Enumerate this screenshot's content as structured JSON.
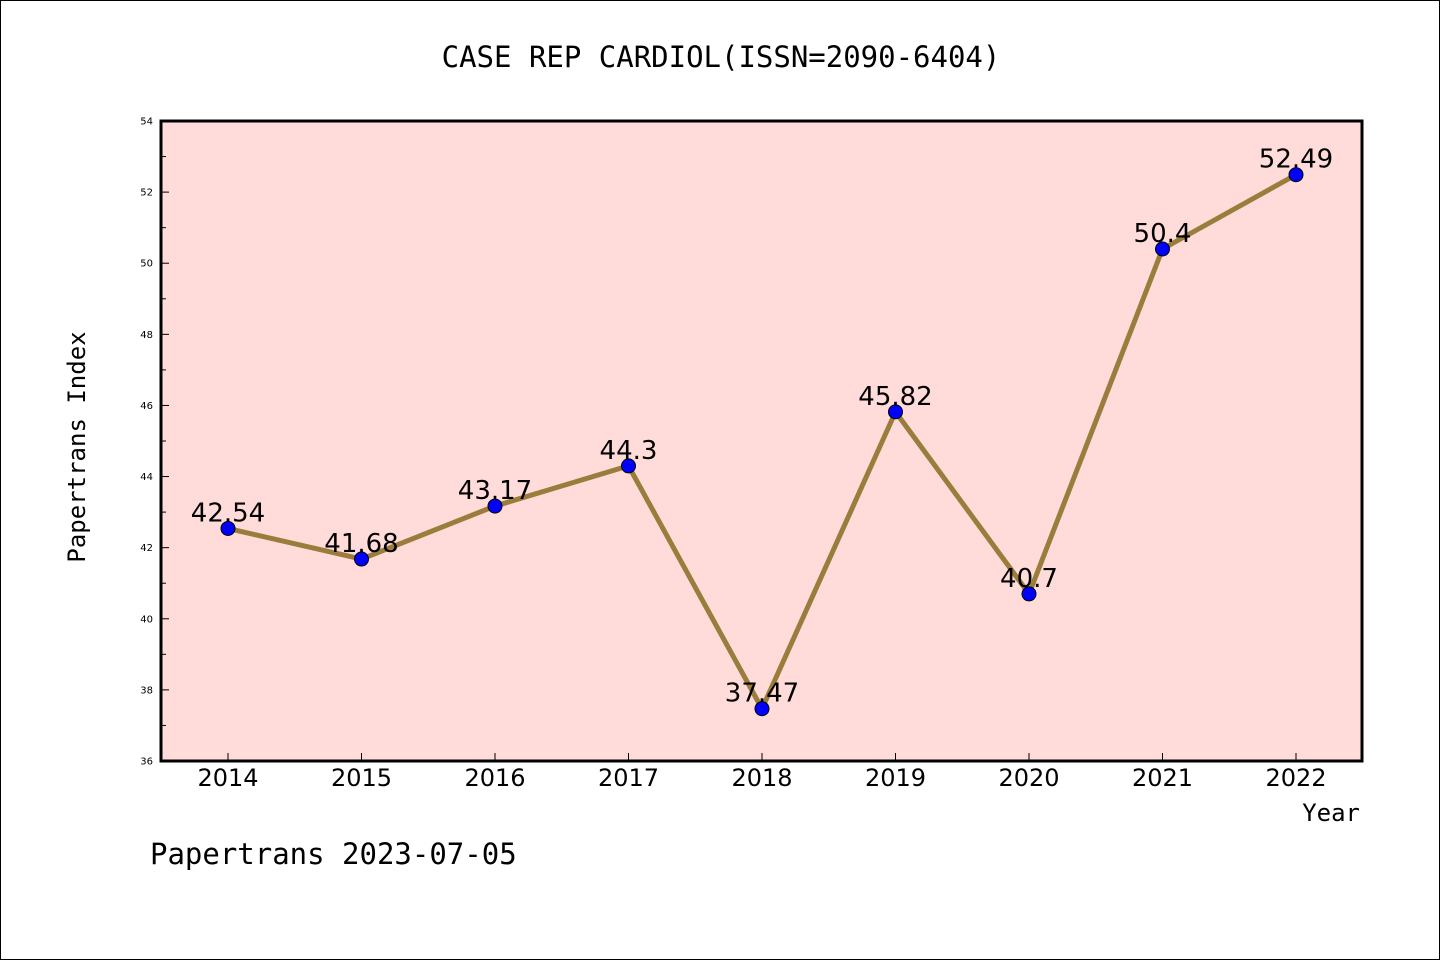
{
  "chart_data": {
    "type": "line",
    "title": "CASE REP CARDIOL(ISSN=2090-6404)",
    "xlabel": "Year",
    "ylabel": "Papertrans Index",
    "categories": [
      "2014",
      "2015",
      "2016",
      "2017",
      "2018",
      "2019",
      "2020",
      "2021",
      "2022"
    ],
    "values": [
      42.54,
      41.68,
      43.17,
      44.3,
      37.47,
      45.82,
      40.7,
      50.4,
      52.49
    ],
    "data_labels": [
      "42.54",
      "41.68",
      "43.17",
      "44.3",
      "37.47",
      "45.82",
      "40.7",
      "50.4",
      "52.49"
    ],
    "ylim": [
      36,
      54
    ],
    "yticks": [
      "36",
      "38",
      "40",
      "42",
      "44",
      "46",
      "48",
      "50",
      "52",
      "54"
    ],
    "grid": false,
    "colors": {
      "plot_background": "#ffdcd9",
      "line": "#9a7d3c",
      "marker": "#0000ff"
    }
  },
  "footer": "Papertrans 2023-07-05"
}
